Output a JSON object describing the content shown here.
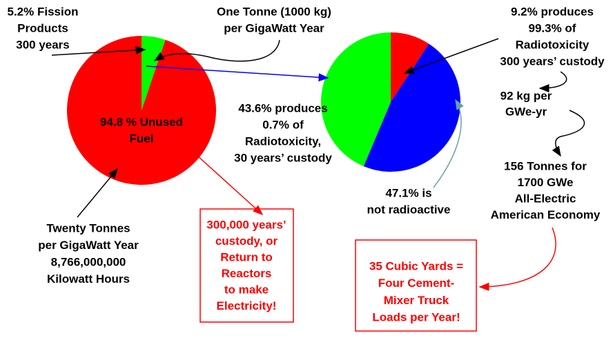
{
  "chart_data": [
    {
      "type": "pie",
      "values": [
        5.2,
        94.8
      ],
      "colors": [
        "#00ff00",
        "#ff0000"
      ],
      "value_labels": [
        [
          "5.2% Fission",
          "Products",
          "300 years"
        ],
        [
          "94.8 % Unused",
          "Fuel"
        ]
      ],
      "label_colors": [
        "#000000",
        "#6a5a5a"
      ]
    },
    {
      "type": "pie",
      "values": [
        9.2,
        47.1,
        43.6
      ],
      "colors": [
        "#ff0000",
        "#0000ff",
        "#00ff00"
      ],
      "value_labels": [
        [
          "9.2% produces",
          "99.3% of",
          "Radiotoxicity",
          "300 years’ custody"
        ],
        [
          "47.1% is",
          "not radioactive"
        ],
        [
          "43.6% produces",
          "0.7% of",
          "Radiotoxicity,",
          "30 years’ custody"
        ]
      ],
      "label_colors": [
        "#000000",
        "#0000ff",
        "#000000"
      ]
    }
  ],
  "annotations": {
    "one_tonne": [
      "One Tonne (1000 kg)",
      "per GigaWatt Year"
    ],
    "twenty_tonnes": [
      "Twenty Tonnes",
      "per GigaWatt Year",
      "8,766,000,000",
      "Kilowatt Hours"
    ],
    "custody_box": [
      "300,000 years’",
      "custody, or",
      "Return to",
      "Reactors",
      "to make",
      "Electricity!"
    ],
    "per_gwe": [
      "92 kg per",
      "GWe-yr"
    ],
    "economy": [
      "156 Tonnes for",
      "1700 GWe",
      "All-Electric",
      "American Economy"
    ],
    "cubic_box": [
      "35 Cubic Yards =",
      "Four Cement-",
      "Mixer Truck",
      "Loads per Year!"
    ]
  }
}
